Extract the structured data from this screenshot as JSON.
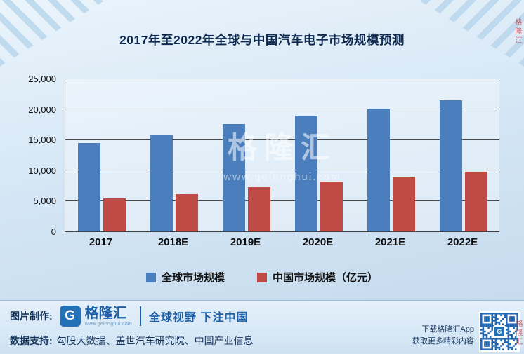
{
  "title": "2017年至2022年全球与中国汽车电子市场规模预测",
  "chart_data": {
    "type": "bar",
    "categories": [
      "2017",
      "2018E",
      "2019E",
      "2020E",
      "2021E",
      "2022E"
    ],
    "series": [
      {
        "name": "全球市场规模",
        "color": "#4a7ebc",
        "values": [
          14500,
          15800,
          17600,
          18900,
          20100,
          21400
        ]
      },
      {
        "name": "中国市场规模（亿元）",
        "color": "#bf4b47",
        "values": [
          5400,
          6100,
          7200,
          8100,
          8900,
          9700
        ]
      }
    ],
    "ylim": [
      0,
      25000
    ],
    "yticks": [
      0,
      5000,
      10000,
      15000,
      20000,
      25000
    ],
    "ytick_labels": [
      "0",
      "5,000",
      "10,000",
      "15,000",
      "20,000",
      "25,000"
    ],
    "grid": true,
    "legend_position": "bottom"
  },
  "watermarks": {
    "center_brand": "格隆汇",
    "center_url": "www.gelonghui.com",
    "side_text": "格隆汇"
  },
  "footer": {
    "credit_label": "图片制作:",
    "logo_letter": "G",
    "brand_name": "格隆汇",
    "brand_url": "www.gelonghui.com",
    "slogan": "全球视野 下注中国",
    "data_label": "数据支持:",
    "data_sources": "勾股大数据、盖世汽车研究院、中国产业信息",
    "qr_caption_line1": "下载格隆汇App",
    "qr_caption_line2": "获取更多精彩内容"
  }
}
